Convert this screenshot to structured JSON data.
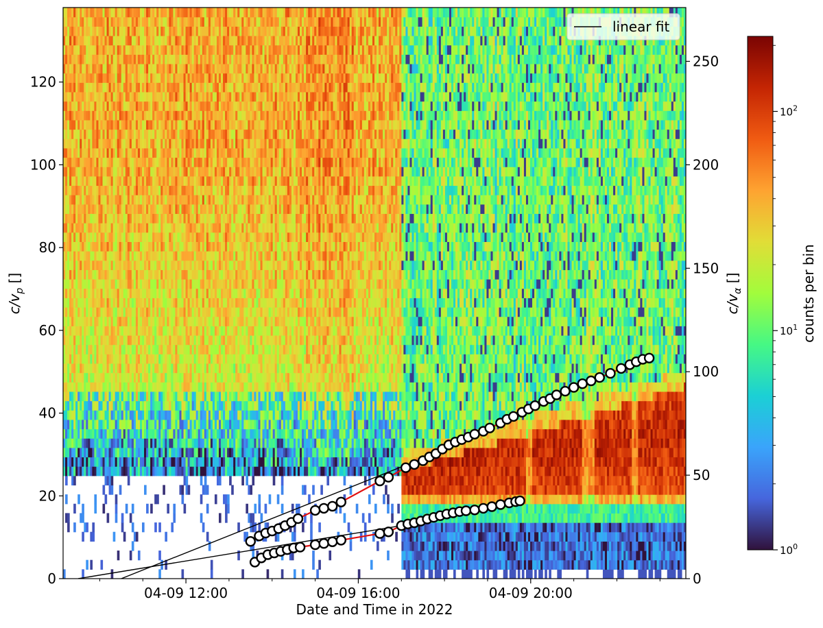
{
  "chart_data": {
    "type": "heatmap",
    "xlabel": "Date and Time in 2022",
    "ylabel": "c/v",
    "ylabel_sub": "p",
    "ylabel_suffix": " []",
    "y2label": "c/v",
    "y2label_sub": "α",
    "y2label_suffix": " []",
    "x_range_hours": [
      9.15,
      23.6
    ],
    "x_ticks": [
      {
        "hour": 12,
        "label": "04-09 12:00"
      },
      {
        "hour": 16,
        "label": "04-09 16:00"
      },
      {
        "hour": 20,
        "label": "04-09 20:00"
      }
    ],
    "x_minor_tick_hours": [
      10,
      11,
      13,
      14,
      15,
      17,
      18,
      19,
      21,
      22,
      23
    ],
    "ylim": [
      0,
      138
    ],
    "y_ticks": [
      0,
      20,
      40,
      60,
      80,
      100,
      120
    ],
    "y2lim": [
      0,
      276
    ],
    "y2_ticks": [
      0,
      50,
      100,
      150,
      200,
      250
    ],
    "colorbar": {
      "label": "counts per bin",
      "scale": "log",
      "range": [
        1,
        220
      ],
      "ticks": [
        {
          "value": 1,
          "base": "10",
          "exp": "0"
        },
        {
          "value": 10,
          "base": "10",
          "exp": "1"
        },
        {
          "value": 100,
          "base": "10",
          "exp": "2"
        }
      ],
      "colormap": "turbo"
    },
    "legend": {
      "position": "top-right",
      "entries": [
        {
          "label": "linear fit",
          "color": "#000000"
        }
      ]
    },
    "upper_track_points": [
      [
        13.5,
        9.0
      ],
      [
        13.7,
        10.3
      ],
      [
        13.85,
        11.0
      ],
      [
        14.0,
        11.5
      ],
      [
        14.15,
        12.1
      ],
      [
        14.3,
        12.8
      ],
      [
        14.45,
        13.6
      ],
      [
        14.6,
        14.5
      ],
      [
        15.0,
        16.5
      ],
      [
        15.2,
        17.0
      ],
      [
        15.4,
        17.5
      ],
      [
        15.6,
        18.5
      ],
      [
        16.5,
        23.6
      ],
      [
        16.7,
        24.5
      ],
      [
        17.1,
        26.8
      ],
      [
        17.3,
        27.6
      ],
      [
        17.5,
        28.5
      ],
      [
        17.65,
        29.4
      ],
      [
        17.8,
        30.2
      ],
      [
        17.95,
        31.3
      ],
      [
        18.1,
        32.3
      ],
      [
        18.25,
        33.0
      ],
      [
        18.4,
        33.6
      ],
      [
        18.55,
        34.2
      ],
      [
        18.7,
        34.9
      ],
      [
        18.9,
        35.6
      ],
      [
        19.05,
        36.4
      ],
      [
        19.3,
        37.6
      ],
      [
        19.45,
        38.5
      ],
      [
        19.6,
        39.2
      ],
      [
        19.8,
        40.2
      ],
      [
        19.95,
        41.0
      ],
      [
        20.1,
        41.8
      ],
      [
        20.3,
        42.8
      ],
      [
        20.45,
        43.5
      ],
      [
        20.6,
        44.4
      ],
      [
        20.8,
        45.3
      ],
      [
        21.0,
        46.2
      ],
      [
        21.2,
        47.1
      ],
      [
        21.4,
        47.8
      ],
      [
        21.6,
        48.6
      ],
      [
        21.85,
        49.6
      ],
      [
        22.1,
        50.8
      ],
      [
        22.3,
        51.7
      ],
      [
        22.45,
        52.4
      ],
      [
        22.6,
        53.0
      ],
      [
        22.75,
        53.3
      ]
    ],
    "lower_track_points": [
      [
        13.6,
        4.0
      ],
      [
        13.75,
        5.0
      ],
      [
        13.9,
        5.8
      ],
      [
        14.05,
        6.2
      ],
      [
        14.2,
        6.6
      ],
      [
        14.35,
        7.0
      ],
      [
        14.5,
        7.4
      ],
      [
        14.65,
        7.6
      ],
      [
        15.0,
        8.2
      ],
      [
        15.2,
        8.5
      ],
      [
        15.4,
        8.9
      ],
      [
        15.6,
        9.3
      ],
      [
        16.5,
        10.9
      ],
      [
        16.7,
        11.3
      ],
      [
        17.0,
        12.8
      ],
      [
        17.15,
        13.2
      ],
      [
        17.3,
        13.5
      ],
      [
        17.45,
        13.9
      ],
      [
        17.6,
        14.4
      ],
      [
        17.75,
        14.8
      ],
      [
        17.9,
        15.2
      ],
      [
        18.05,
        15.6
      ],
      [
        18.2,
        15.9
      ],
      [
        18.35,
        16.2
      ],
      [
        18.5,
        16.4
      ],
      [
        18.7,
        16.6
      ],
      [
        18.9,
        17.0
      ],
      [
        19.1,
        17.4
      ],
      [
        19.3,
        17.9
      ],
      [
        19.5,
        18.3
      ],
      [
        19.65,
        18.6
      ],
      [
        19.75,
        18.8
      ]
    ],
    "fit_lines": [
      {
        "from": [
          10.5,
          0
        ],
        "to": [
          17.0,
          27.0
        ]
      },
      {
        "from": [
          9.5,
          0
        ],
        "to": [
          17.0,
          12.8
        ]
      }
    ]
  }
}
